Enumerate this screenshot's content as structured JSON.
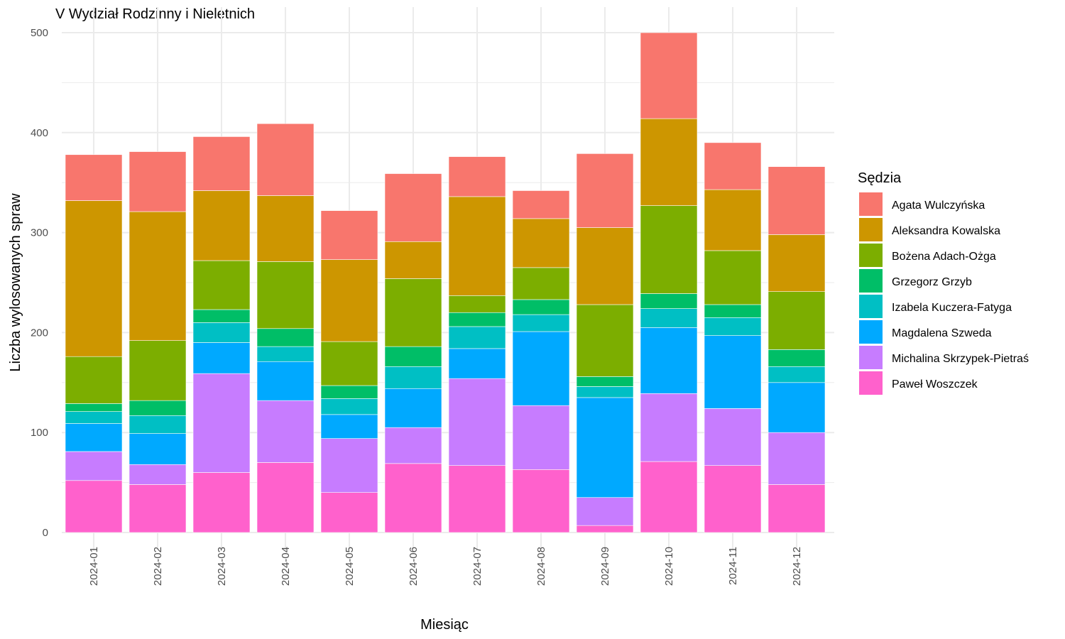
{
  "chart_data": {
    "type": "bar",
    "stacked": true,
    "title": "V Wydział Rodzinny i Nieletnich",
    "xlabel": "Miesiąc",
    "ylabel": "Liczba wylosowanych spraw",
    "ylim": [
      -18,
      515
    ],
    "yticks": [
      0,
      100,
      200,
      300,
      400,
      500
    ],
    "grid": true,
    "legend_title": "Sędzia",
    "legend_position": "right",
    "categories": [
      "2024-01",
      "2024-02",
      "2024-03",
      "2024-04",
      "2024-05",
      "2024-06",
      "2024-07",
      "2024-08",
      "2024-09",
      "2024-10",
      "2024-11",
      "2024-12"
    ],
    "series": [
      {
        "name": "Paweł Woszczek",
        "color": "#FF61CC",
        "values": [
          52,
          48,
          60,
          70,
          40,
          69,
          67,
          63,
          7,
          71,
          67,
          48
        ]
      },
      {
        "name": "Michalina Skrzypek-Pietraś",
        "color": "#C77CFF",
        "values": [
          29,
          20,
          99,
          62,
          54,
          36,
          87,
          64,
          28,
          68,
          57,
          52
        ]
      },
      {
        "name": "Magdalena Szweda",
        "color": "#00A9FF",
        "values": [
          28,
          31,
          31,
          39,
          24,
          39,
          30,
          74,
          100,
          66,
          73,
          50
        ]
      },
      {
        "name": "Izabela Kuczera-Fatyga",
        "color": "#00BFC4",
        "values": [
          12,
          18,
          20,
          15,
          16,
          22,
          22,
          17,
          11,
          19,
          18,
          16
        ]
      },
      {
        "name": "Grzegorz Grzyb",
        "color": "#00BE67",
        "values": [
          8,
          15,
          13,
          18,
          13,
          20,
          14,
          15,
          10,
          15,
          13,
          17
        ]
      },
      {
        "name": "Bożena Adach-Ożga",
        "color": "#7CAE00",
        "values": [
          47,
          60,
          49,
          67,
          44,
          68,
          17,
          32,
          72,
          88,
          54,
          58
        ]
      },
      {
        "name": "Aleksandra Kowalska",
        "color": "#CD9600",
        "values": [
          156,
          129,
          70,
          66,
          82,
          37,
          99,
          49,
          77,
          87,
          61,
          57
        ]
      },
      {
        "name": "Agata Wulczyńska",
        "color": "#F8766D",
        "values": [
          46,
          60,
          54,
          72,
          49,
          68,
          40,
          28,
          74,
          86,
          47,
          68
        ]
      }
    ],
    "legend_order": [
      "Agata Wulczyńska",
      "Aleksandra Kowalska",
      "Bożena Adach-Ożga",
      "Grzegorz Grzyb",
      "Izabela Kuczera-Fatyga",
      "Magdalena Szweda",
      "Michalina Skrzypek-Pietraś",
      "Paweł Woszczek"
    ]
  }
}
